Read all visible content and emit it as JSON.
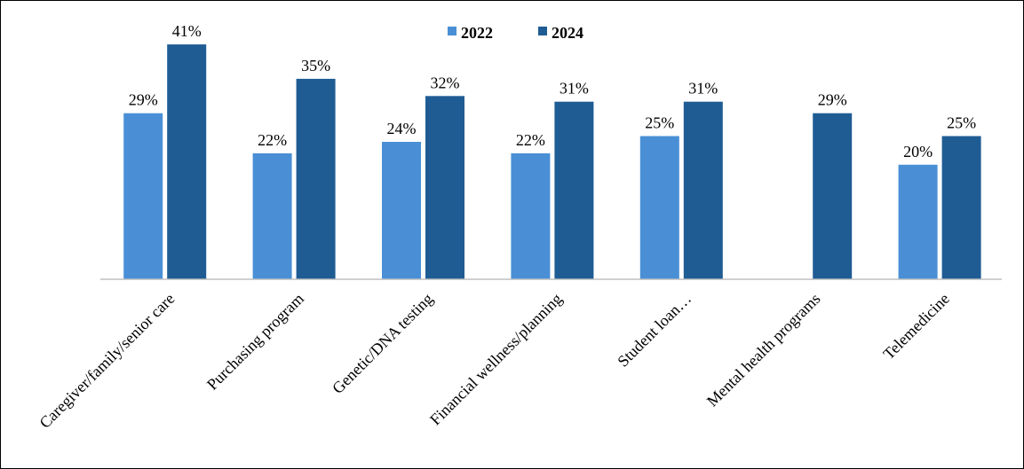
{
  "chart_data": {
    "type": "bar",
    "categories": [
      "Caregiver/family/senior care",
      "Purchasing program",
      "Genetic/DNA testing",
      "Financial wellness/planning",
      "Student loan…",
      "Mental health programs",
      "Telemedicine"
    ],
    "series": [
      {
        "name": "2022",
        "values": [
          29,
          22,
          24,
          22,
          25,
          null,
          20
        ],
        "color": "#4a8fd6"
      },
      {
        "name": "2024",
        "values": [
          41,
          35,
          32,
          31,
          31,
          29,
          25
        ],
        "color": "#1f5c94"
      }
    ],
    "value_suffix": "%",
    "ylim": [
      0,
      41
    ],
    "grid": false,
    "legend_position": "top-center",
    "title": "",
    "xlabel": "",
    "ylabel": ""
  }
}
